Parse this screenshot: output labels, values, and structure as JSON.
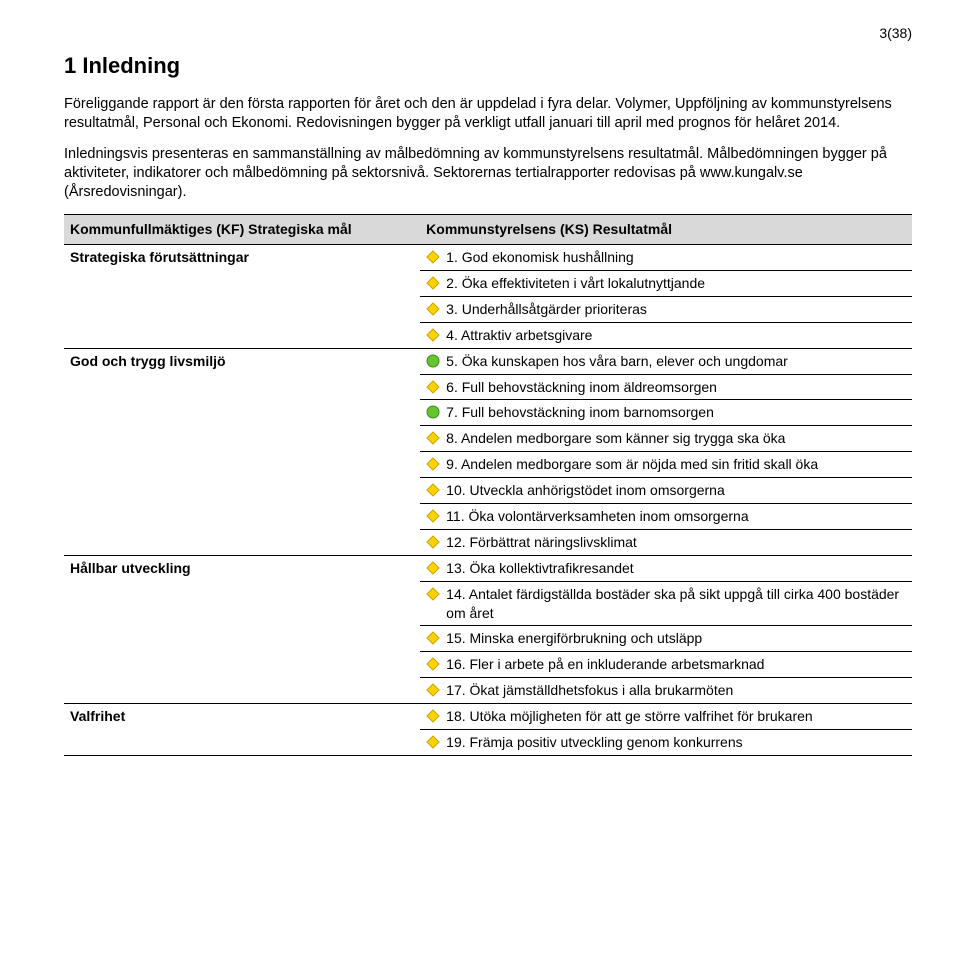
{
  "page_number": "3(38)",
  "heading": "1 Inledning",
  "paragraph1": "Föreliggande rapport är den första rapporten för året och den är uppdelad i fyra delar. Volymer, Uppföljning av kommunstyrelsens resultatmål, Personal och Ekonomi. Redovisningen bygger på verkligt utfall januari till april med prognos för helåret 2014.",
  "paragraph2": "Inledningsvis presenteras en sammanställning av målbedömning av kommunstyrelsens resultatmål. Målbedömningen bygger på aktiviteter, indikatorer och målbedömning på sektorsnivå. Sektorernas tertialrapporter redovisas på www.kungalv.se (Årsredovisningar).",
  "table_header_left": "Kommunfullmäktiges (KF) Strategiska mål",
  "table_header_right": "Kommunstyrelsens (KS) Resultatmål",
  "colors": {
    "yellow": "#ffd200",
    "yellow_stroke": "#c7a400",
    "green": "#66c430",
    "green_stroke": "#3f8a1b",
    "header_bg": "#d9d9d9",
    "border": "#000000"
  },
  "sections": [
    {
      "left": "Strategiska förutsättningar",
      "items": [
        {
          "marker": "yellow",
          "text": "1. God ekonomisk hushållning"
        },
        {
          "marker": "yellow",
          "text": "2. Öka effektiviteten i vårt lokalutnyttjande"
        },
        {
          "marker": "yellow",
          "text": "3. Underhållsåtgärder prioriteras"
        },
        {
          "marker": "yellow",
          "text": "4. Attraktiv arbetsgivare"
        }
      ]
    },
    {
      "left": "God och trygg livsmiljö",
      "items": [
        {
          "marker": "green",
          "text": "5. Öka kunskapen hos våra barn, elever och ungdomar"
        },
        {
          "marker": "yellow",
          "text": "6. Full behovstäckning inom äldreomsorgen"
        },
        {
          "marker": "green",
          "text": "7. Full behovstäckning inom barnomsorgen"
        },
        {
          "marker": "yellow",
          "text": "8. Andelen medborgare som känner sig trygga ska öka"
        },
        {
          "marker": "yellow",
          "text": "9. Andelen medborgare som är nöjda med sin fritid skall öka"
        },
        {
          "marker": "yellow",
          "text": "10. Utveckla anhörigstödet inom omsorgerna"
        },
        {
          "marker": "yellow",
          "text": "11. Öka volontärverksamheten inom omsorgerna"
        },
        {
          "marker": "yellow",
          "text": "12. Förbättrat näringslivsklimat"
        }
      ]
    },
    {
      "left": "Hållbar utveckling",
      "items": [
        {
          "marker": "yellow",
          "text": "13. Öka kollektivtrafikresandet"
        },
        {
          "marker": "yellow",
          "text": "14. Antalet färdigställda bostäder ska på sikt uppgå till cirka 400 bostäder om året"
        },
        {
          "marker": "yellow",
          "text": "15. Minska energiförbrukning och utsläpp"
        },
        {
          "marker": "yellow",
          "text": "16. Fler i arbete på en inkluderande arbetsmarknad"
        },
        {
          "marker": "yellow",
          "text": "17. Ökat jämställdhetsfokus i alla brukarmöten"
        }
      ]
    },
    {
      "left": "Valfrihet",
      "items": [
        {
          "marker": "yellow",
          "text": "18. Utöka möjligheten för att ge större valfrihet för brukaren"
        },
        {
          "marker": "yellow",
          "text": "19. Främja positiv utveckling genom konkurrens"
        }
      ]
    }
  ]
}
